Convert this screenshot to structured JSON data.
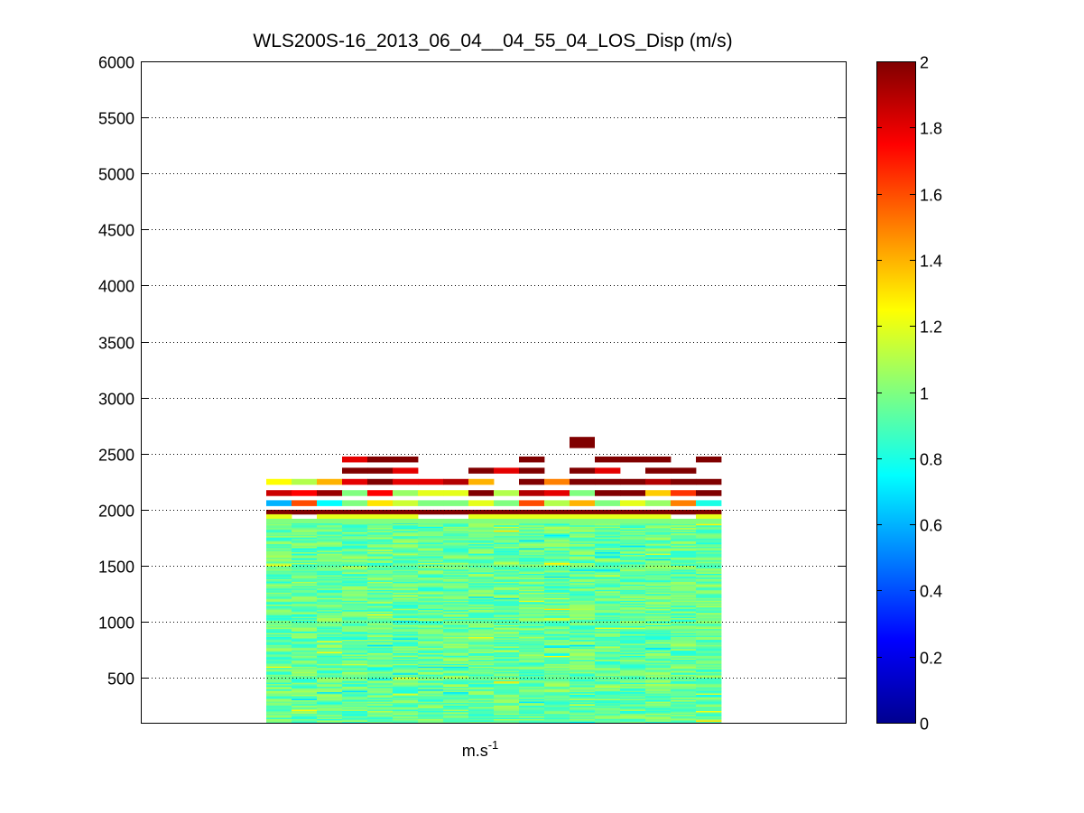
{
  "chart_data": {
    "type": "heatmap",
    "title": "WLS200S-16_2013_06_04__04_55_04_LOS_Disp (m/s)",
    "xlabel": "m.s",
    "xlabel_superscript": "-1",
    "ylabel": "",
    "ylim": [
      100,
      6000
    ],
    "yticks": [
      500,
      1000,
      1500,
      2000,
      2500,
      3000,
      3500,
      4000,
      4500,
      5000,
      5500,
      6000
    ],
    "grid": "y-dotted",
    "colormap": "jet",
    "colorbar": {
      "range": [
        0,
        2
      ],
      "ticks": [
        0,
        0.2,
        0.4,
        0.6,
        0.8,
        1,
        1.2,
        1.4,
        1.6,
        1.8,
        2
      ]
    },
    "num_columns": 18,
    "row_height": 50,
    "upper_rows": [
      {
        "altitude": 2450,
        "values": [
          null,
          null,
          null,
          1.8,
          2.0,
          2.0,
          null,
          null,
          null,
          null,
          2.0,
          null,
          null,
          2.0,
          2.0,
          2.0,
          null,
          2.0
        ]
      },
      {
        "altitude": 2350,
        "values": [
          null,
          null,
          null,
          2.0,
          2.0,
          1.8,
          null,
          null,
          2.0,
          1.8,
          2.0,
          null,
          2.0,
          1.8,
          null,
          2.0,
          2.0,
          null
        ]
      },
      {
        "altitude": 2250,
        "values": [
          1.25,
          1.1,
          1.4,
          1.8,
          2.0,
          1.8,
          1.8,
          1.9,
          1.4,
          null,
          2.0,
          1.5,
          2.0,
          2.0,
          2.0,
          1.9,
          2.0,
          2.0
        ]
      },
      {
        "altitude": 2150,
        "values": [
          1.85,
          1.75,
          1.95,
          1.0,
          1.75,
          1.05,
          1.2,
          1.2,
          2.0,
          1.1,
          1.9,
          1.8,
          1.0,
          2.0,
          2.0,
          1.35,
          1.65,
          2.0
        ]
      },
      {
        "altitude": 2060,
        "values": [
          0.6,
          1.6,
          0.75,
          1.0,
          1.3,
          1.15,
          1.0,
          1.0,
          1.2,
          1.0,
          1.6,
          1.1,
          1.4,
          1.0,
          1.2,
          1.05,
          1.5,
          0.8
        ]
      }
    ],
    "lower_block": {
      "altitude_range": [
        100,
        1880
      ],
      "value_range": [
        0.7,
        1.3
      ],
      "typical_value": 0.95
    },
    "boundary_band": {
      "altitude_range": [
        1880,
        2000
      ],
      "values": [
        2.0,
        1.2,
        1.0
      ]
    }
  }
}
